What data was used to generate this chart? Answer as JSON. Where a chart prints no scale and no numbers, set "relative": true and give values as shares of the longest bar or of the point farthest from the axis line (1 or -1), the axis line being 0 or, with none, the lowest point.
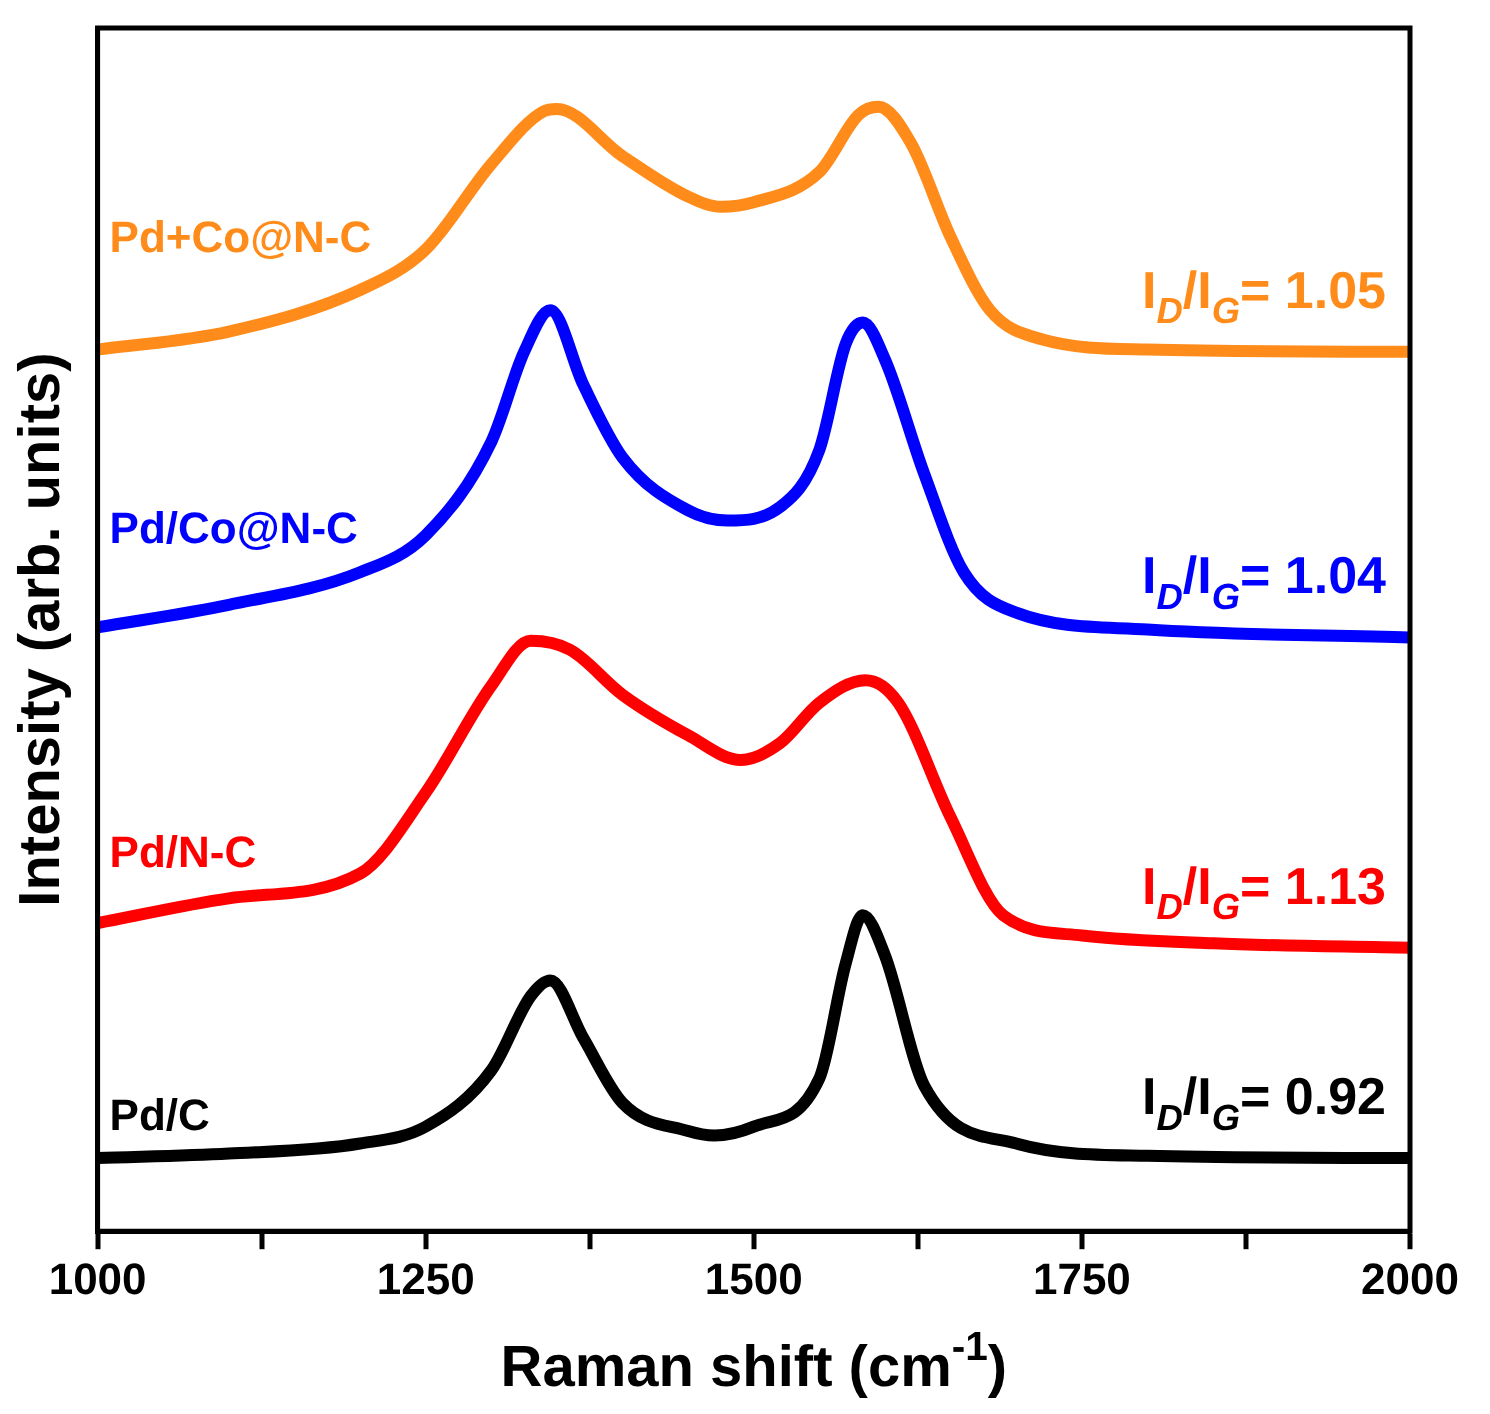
{
  "chart_data": {
    "type": "line",
    "relative": true,
    "xlabel": "Raman shift (cm$^{-1}$)",
    "ylabel": "Intensity (arb. units)",
    "xlim": [
      1000,
      2000
    ],
    "xticks": [
      1000,
      {
        "value": 1125,
        "label": null
      },
      1250,
      {
        "value": 1375,
        "label": null
      },
      1500,
      {
        "value": 1625,
        "label": null
      },
      1750,
      {
        "value": 1875,
        "label": null
      },
      2000
    ],
    "legend": false,
    "grid": false,
    "marker": "none",
    "line_style": "solid",
    "series": [
      {
        "name": "Pd+Co@N-C",
        "color": "#ff8c1a",
        "x": [
          1000,
          1100,
          1200,
          1250,
          1300,
          1340,
          1350,
          1400,
          1450,
          1475,
          1500,
          1550,
          1580,
          1595,
          1620,
          1650,
          1680,
          1720,
          1800,
          2000
        ],
        "values": [
          0.784,
          0.8,
          0.837,
          0.873,
          0.949,
          0.996,
          0.998,
          0.956,
          0.92,
          0.911,
          0.915,
          0.942,
          0.993,
          1.0,
          0.967,
          0.884,
          0.819,
          0.793,
          0.784,
          0.782
        ]
      },
      {
        "name": "Pd/Co@N-C",
        "color": "#0000ff",
        "x": [
          1000,
          1100,
          1200,
          1250,
          1300,
          1325,
          1345,
          1370,
          1400,
          1450,
          1480,
          1520,
          1550,
          1570,
          1583,
          1600,
          1630,
          1660,
          1700,
          1800,
          2000
        ],
        "values": [
          0.537,
          0.557,
          0.586,
          0.619,
          0.702,
          0.782,
          0.819,
          0.753,
          0.688,
          0.641,
          0.632,
          0.644,
          0.695,
          0.789,
          0.808,
          0.775,
          0.673,
          0.586,
          0.55,
          0.535,
          0.528
        ]
      },
      {
        "name": "Pd/N-C",
        "color": "#ff0000",
        "x": [
          1000,
          1100,
          1200,
          1250,
          1300,
          1330,
          1360,
          1400,
          1450,
          1490,
          1520,
          1550,
          1585,
          1610,
          1650,
          1690,
          1750,
          1850,
          2000
        ],
        "values": [
          0.274,
          0.296,
          0.318,
          0.39,
          0.485,
          0.525,
          0.517,
          0.477,
          0.441,
          0.419,
          0.434,
          0.47,
          0.49,
          0.47,
          0.368,
          0.281,
          0.263,
          0.256,
          0.252
        ]
      },
      {
        "name": "Pd/C",
        "color": "#000000",
        "x": [
          1000,
          1100,
          1200,
          1250,
          1300,
          1330,
          1345,
          1370,
          1400,
          1450,
          1470,
          1500,
          1550,
          1570,
          1583,
          1600,
          1630,
          1700,
          1800,
          2000
        ],
        "values": [
          0.065,
          0.069,
          0.078,
          0.093,
          0.143,
          0.209,
          0.223,
          0.172,
          0.114,
          0.089,
          0.085,
          0.093,
          0.136,
          0.238,
          0.281,
          0.245,
          0.129,
          0.078,
          0.067,
          0.065
        ]
      }
    ],
    "annotations": [
      "I$_{D}$/I$_{G}$= 1.05",
      "I$_{D}$/I$_{G}$= 1.04",
      "I$_{D}$/I$_{G}$= 1.13",
      "I$_{D}$/I$_{G}$= 0.92"
    ]
  }
}
